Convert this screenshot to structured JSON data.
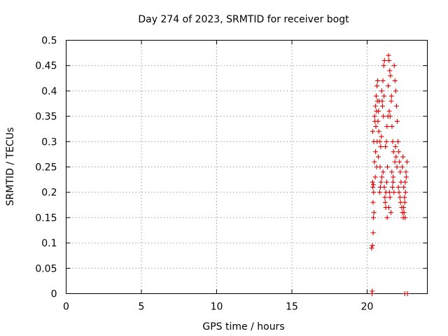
{
  "chart_data": {
    "type": "scatter",
    "title": "Day 274 of 2023, SRMTID for receiver bogt",
    "xlabel": "GPS time / hours",
    "ylabel": "SRMTID / TECUs",
    "xlim": [
      0,
      24
    ],
    "ylim": [
      0,
      0.5
    ],
    "x_ticks": [
      "0",
      "5",
      "10",
      "15",
      "20"
    ],
    "x_tick_values": [
      0,
      5,
      10,
      15,
      20
    ],
    "y_ticks": [
      "0",
      "0.05",
      "0.1",
      "0.15",
      "0.2",
      "0.25",
      "0.3",
      "0.35",
      "0.4",
      "0.45",
      "0.5"
    ],
    "y_tick_values": [
      0,
      0.05,
      0.1,
      0.15,
      0.2,
      0.25,
      0.3,
      0.35,
      0.4,
      0.45,
      0.5
    ],
    "grid": true,
    "marker": "+",
    "color": "#e00000",
    "series": [
      {
        "x": [
          20.3,
          20.35,
          20.4,
          20.42,
          20.45,
          20.38,
          20.41,
          20.36,
          20.43,
          20.39,
          20.44,
          20.37,
          20.5,
          20.55,
          20.6,
          20.65,
          20.52,
          20.58,
          20.62,
          20.68,
          20.7,
          20.56,
          20.63,
          20.48,
          20.54,
          20.66,
          20.72,
          20.75,
          20.8,
          20.85,
          20.9,
          20.95,
          20.78,
          20.83,
          20.88,
          20.92,
          20.74,
          20.86,
          20.97,
          21.0,
          21.05,
          21.1,
          21.15,
          21.02,
          21.08,
          21.12,
          20.98,
          21.06,
          21.14,
          21.18,
          21.2,
          21.25,
          21.3,
          21.35,
          21.22,
          21.28,
          21.32,
          21.38,
          21.24,
          21.33,
          21.4,
          21.42,
          21.45,
          21.5,
          21.55,
          21.48,
          21.52,
          21.44,
          21.58,
          21.53,
          21.47,
          21.6,
          21.62,
          21.65,
          21.7,
          21.75,
          21.68,
          21.72,
          21.64,
          21.78,
          21.73,
          21.8,
          21.85,
          21.9,
          21.95,
          22.0,
          21.88,
          21.92,
          21.84,
          21.98,
          22.05,
          22.1,
          22.15,
          22.2,
          22.25,
          22.08,
          22.12,
          22.18,
          22.22,
          22.3,
          22.35,
          22.4,
          22.45,
          22.5,
          22.55,
          22.6,
          22.33,
          22.38,
          22.43,
          22.48,
          22.53,
          22.58,
          22.65,
          22.42,
          22.52,
          20.32,
          20.34,
          22.5,
          22.68
        ],
        "y": [
          0.09,
          0.095,
          0.12,
          0.15,
          0.16,
          0.21,
          0.215,
          0.22,
          0.2,
          0.18,
          0.3,
          0.32,
          0.35,
          0.37,
          0.39,
          0.41,
          0.34,
          0.33,
          0.36,
          0.38,
          0.42,
          0.28,
          0.25,
          0.26,
          0.23,
          0.3,
          0.34,
          0.36,
          0.38,
          0.3,
          0.29,
          0.31,
          0.32,
          0.2,
          0.21,
          0.22,
          0.27,
          0.25,
          0.4,
          0.38,
          0.42,
          0.45,
          0.46,
          0.37,
          0.35,
          0.39,
          0.23,
          0.24,
          0.21,
          0.19,
          0.18,
          0.2,
          0.22,
          0.25,
          0.29,
          0.3,
          0.33,
          0.35,
          0.17,
          0.15,
          0.41,
          0.47,
          0.46,
          0.44,
          0.43,
          0.2,
          0.19,
          0.17,
          0.16,
          0.35,
          0.36,
          0.38,
          0.39,
          0.33,
          0.3,
          0.28,
          0.21,
          0.22,
          0.24,
          0.2,
          0.23,
          0.45,
          0.42,
          0.4,
          0.37,
          0.34,
          0.29,
          0.27,
          0.26,
          0.25,
          0.3,
          0.28,
          0.26,
          0.24,
          0.22,
          0.21,
          0.2,
          0.19,
          0.18,
          0.17,
          0.16,
          0.15,
          0.16,
          0.18,
          0.2,
          0.23,
          0.25,
          0.27,
          0.21,
          0.19,
          0.22,
          0.24,
          0.26,
          0.17,
          0.15,
          0.0,
          0.005,
          0.0,
          0.0
        ]
      }
    ]
  }
}
